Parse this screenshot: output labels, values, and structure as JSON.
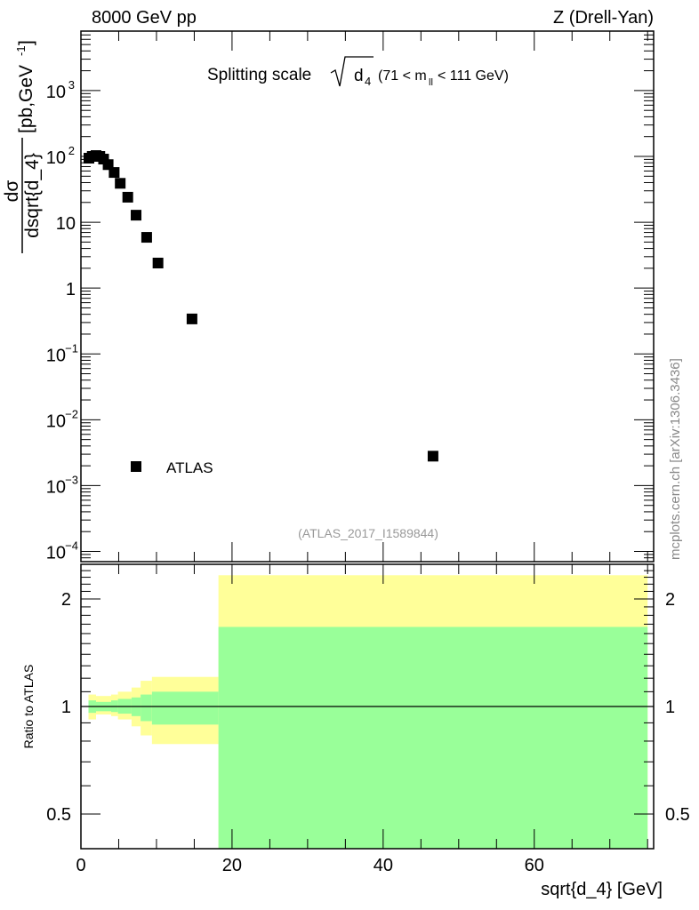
{
  "header": {
    "left": "8000 GeV pp",
    "right": "Z (Drell-Yan)"
  },
  "side_label": "mcplots.cern.ch [arXiv:1306.3436]",
  "analysis_label": "(ATLAS_2017_I1589844)",
  "colors": {
    "band_outer": "#ffff99",
    "band_inner": "#99ff99",
    "marker": "#000000"
  },
  "chart_data": [
    {
      "type": "scatter",
      "title": "Splitting scale √d4 (71 < m_ll < 111 GeV)",
      "title_parts": {
        "main": "Splitting scale",
        "sub": "4",
        "rest": "(71 < m",
        "ll": "ll",
        "end": "< 111 GeV)"
      },
      "ylabel": "dσ/dsqrt{d_4} [pb,GeV^-1]",
      "ylabel_parts": {
        "num": "dσ",
        "den": "dsqrt{d_4}",
        "unit": "[pb,GeV",
        "exp": "-1",
        "close": "]"
      },
      "yscale": "log",
      "ylim": [
        7e-05,
        8000
      ],
      "xlim": [
        0,
        75.8
      ],
      "yticks": [
        {
          "v": 1000,
          "b": "10",
          "e": "3"
        },
        {
          "v": 100,
          "b": "10",
          "e": "2"
        },
        {
          "v": 10,
          "b": "10",
          "e": ""
        },
        {
          "v": 1,
          "b": "1",
          "e": ""
        },
        {
          "v": 0.1,
          "b": "10",
          "e": "−1"
        },
        {
          "v": 0.01,
          "b": "10",
          "e": "−2"
        },
        {
          "v": 0.001,
          "b": "10",
          "e": "−3"
        },
        {
          "v": 0.0001,
          "b": "10",
          "e": "−4"
        }
      ],
      "legend": [
        {
          "label": "ATLAS",
          "placement": "lower-left"
        }
      ],
      "series": [
        {
          "name": "ATLAS",
          "x": [
            1.06,
            1.5,
            2.0,
            2.5,
            3.0,
            3.6,
            4.4,
            5.2,
            6.2,
            7.3,
            8.7,
            10.2,
            14.7,
            46.6
          ],
          "y": [
            94,
            100,
            103,
            100,
            91,
            75,
            57,
            39,
            24,
            12.8,
            5.9,
            2.4,
            0.34,
            0.0028
          ]
        }
      ]
    },
    {
      "type": "area",
      "ylabel": "Ratio to ATLAS",
      "xlabel": "sqrt{d_4} [GeV]",
      "yscale": "log",
      "ylim": [
        0.4,
        2.5
      ],
      "xlim": [
        0,
        75.8
      ],
      "yticks": [
        0.5,
        1,
        2
      ],
      "yticklabels": [
        "0.5",
        "1",
        "2"
      ],
      "xticks": [
        0,
        20,
        40,
        60
      ],
      "xticklabels": [
        "0",
        "20",
        "40",
        "60"
      ],
      "reference_line": 1,
      "bins": [
        {
          "lo": 1.0,
          "hi": 2.0,
          "outer": [
            0.92,
            1.08
          ],
          "inner": [
            0.96,
            1.04
          ]
        },
        {
          "lo": 2.0,
          "hi": 4.0,
          "outer": [
            0.95,
            1.07
          ],
          "inner": [
            0.97,
            1.03
          ]
        },
        {
          "lo": 4.0,
          "hi": 4.9,
          "outer": [
            0.94,
            1.08
          ],
          "inner": [
            0.965,
            1.04
          ]
        },
        {
          "lo": 4.9,
          "hi": 6.7,
          "outer": [
            0.92,
            1.1
          ],
          "inner": [
            0.955,
            1.05
          ]
        },
        {
          "lo": 6.7,
          "hi": 7.9,
          "outer": [
            0.88,
            1.13
          ],
          "inner": [
            0.94,
            1.06
          ]
        },
        {
          "lo": 7.9,
          "hi": 9.4,
          "outer": [
            0.83,
            1.18
          ],
          "inner": [
            0.91,
            1.08
          ]
        },
        {
          "lo": 9.4,
          "hi": 18.2,
          "outer": [
            0.785,
            1.21
          ],
          "inner": [
            0.89,
            1.1
          ]
        },
        {
          "lo": 18.2,
          "hi": 75,
          "outer": [
            0.3,
            2.33
          ],
          "inner": [
            0.3,
            1.67
          ]
        }
      ]
    }
  ]
}
